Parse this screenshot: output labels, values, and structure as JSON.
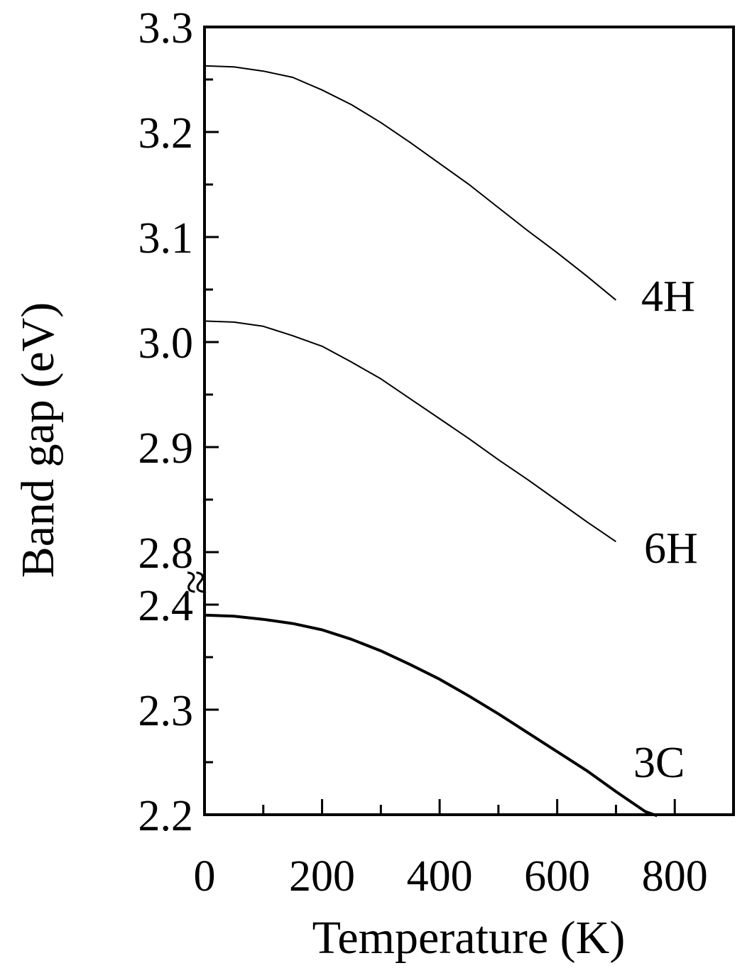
{
  "chart_data": {
    "type": "line",
    "title": "",
    "xlabel": "Temperature (K)",
    "ylabel": "Band gap (eV)",
    "xlim": [
      0,
      900
    ],
    "x_ticks": [
      "0",
      "200",
      "400",
      "600",
      "800"
    ],
    "y_ticks_upper": [
      "2.8",
      "2.9",
      "3.0",
      "3.1",
      "3.2",
      "3.3"
    ],
    "y_ticks_lower": [
      "2.2",
      "2.3",
      "2.4"
    ],
    "axis_break": "≈",
    "upper_ylim": [
      2.75,
      3.3
    ],
    "lower_ylim": [
      2.2,
      2.4
    ],
    "grid": false,
    "series": [
      {
        "name": "4H",
        "x": [
          0,
          50,
          100,
          150,
          200,
          250,
          300,
          350,
          400,
          450,
          500,
          550,
          600,
          650,
          700
        ],
        "y": [
          3.263,
          3.262,
          3.258,
          3.252,
          3.24,
          3.226,
          3.209,
          3.19,
          3.17,
          3.15,
          3.128,
          3.106,
          3.085,
          3.063,
          3.04
        ]
      },
      {
        "name": "6H",
        "x": [
          0,
          50,
          100,
          150,
          200,
          250,
          300,
          350,
          400,
          450,
          500,
          550,
          600,
          650,
          700
        ],
        "y": [
          3.02,
          3.019,
          3.015,
          3.006,
          2.996,
          2.981,
          2.965,
          2.946,
          2.927,
          2.908,
          2.888,
          2.869,
          2.849,
          2.829,
          2.81
        ]
      },
      {
        "name": "3C",
        "x": [
          0,
          50,
          100,
          150,
          200,
          250,
          300,
          350,
          400,
          450,
          500,
          550,
          600,
          650,
          700,
          750,
          770
        ],
        "y": [
          2.39,
          2.389,
          2.386,
          2.382,
          2.376,
          2.367,
          2.356,
          2.343,
          2.329,
          2.313,
          2.296,
          2.278,
          2.26,
          2.242,
          2.222,
          2.203,
          2.199
        ]
      }
    ]
  }
}
